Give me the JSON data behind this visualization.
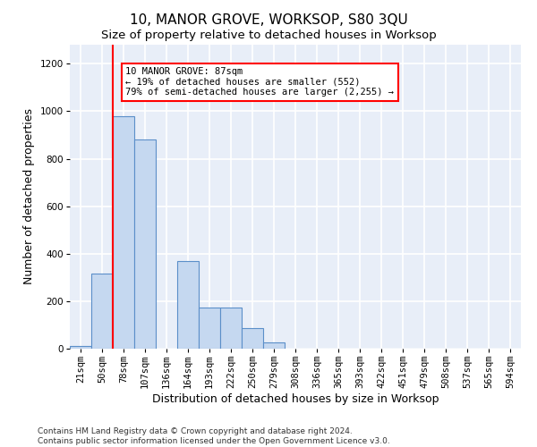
{
  "title": "10, MANOR GROVE, WORKSOP, S80 3QU",
  "subtitle": "Size of property relative to detached houses in Worksop",
  "xlabel": "Distribution of detached houses by size in Worksop",
  "ylabel": "Number of detached properties",
  "bin_labels": [
    "21sqm",
    "50sqm",
    "78sqm",
    "107sqm",
    "136sqm",
    "164sqm",
    "193sqm",
    "222sqm",
    "250sqm",
    "279sqm",
    "308sqm",
    "336sqm",
    "365sqm",
    "393sqm",
    "422sqm",
    "451sqm",
    "479sqm",
    "508sqm",
    "537sqm",
    "565sqm",
    "594sqm"
  ],
  "bar_values": [
    10,
    315,
    980,
    880,
    0,
    370,
    175,
    175,
    85,
    25,
    0,
    0,
    0,
    0,
    0,
    0,
    0,
    0,
    0,
    0,
    0
  ],
  "bar_color": "#c5d8f0",
  "bar_edge_color": "#5b8fc9",
  "property_line_color": "red",
  "annotation_text": "10 MANOR GROVE: 87sqm\n← 19% of detached houses are smaller (552)\n79% of semi-detached houses are larger (2,255) →",
  "annotation_box_color": "white",
  "annotation_box_edge_color": "red",
  "ylim": [
    0,
    1280
  ],
  "yticks": [
    0,
    200,
    400,
    600,
    800,
    1000,
    1200
  ],
  "footnote": "Contains HM Land Registry data © Crown copyright and database right 2024.\nContains public sector information licensed under the Open Government Licence v3.0.",
  "bg_color": "#e8eef8",
  "grid_color": "white",
  "title_fontsize": 11,
  "subtitle_fontsize": 9.5,
  "label_fontsize": 9,
  "tick_fontsize": 7.5,
  "annotation_fontsize": 7.5
}
